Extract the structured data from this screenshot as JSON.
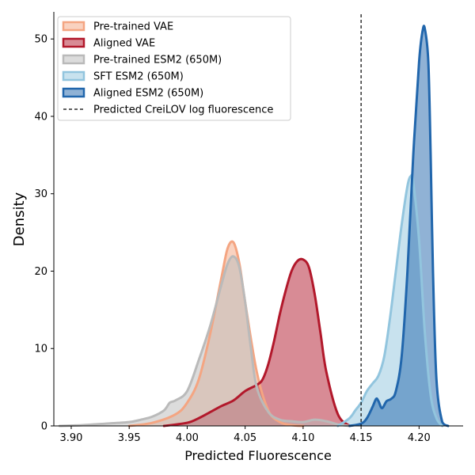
{
  "chart_data": {
    "type": "area",
    "xlabel": "Predicted Fluorescence",
    "ylabel": "Density",
    "xlim": [
      3.885,
      4.238
    ],
    "ylim": [
      0,
      53.5
    ],
    "xticks": [
      3.9,
      3.95,
      4.0,
      4.05,
      4.1,
      4.15,
      4.2
    ],
    "xtick_labels": [
      "3.90",
      "3.95",
      "4.00",
      "4.05",
      "4.10",
      "4.15",
      "4.20"
    ],
    "yticks": [
      0,
      10,
      20,
      30,
      40,
      50
    ],
    "ytick_labels": [
      "0",
      "10",
      "20",
      "30",
      "40",
      "50"
    ],
    "grid": false,
    "legend_position": "top-left",
    "reference_line": {
      "label": "Predicted CreiLOV log fluorescence",
      "x": 4.15,
      "style": "dashed",
      "color": "#000000"
    },
    "series": [
      {
        "name": "Pre-trained VAE",
        "color": "#f4a582",
        "x": [
          3.95,
          3.97,
          3.99,
          4.0,
          4.01,
          4.02,
          4.03,
          4.035,
          4.04,
          4.045,
          4.05,
          4.06,
          4.07,
          4.08,
          4.09,
          4.1
        ],
        "y": [
          0,
          0.4,
          1.5,
          3,
          6,
          12,
          19.5,
          23,
          23.7,
          21,
          16,
          7,
          2,
          0.5,
          0.1,
          0
        ]
      },
      {
        "name": "Aligned VAE",
        "color": "#b2182b",
        "x": [
          3.98,
          4.0,
          4.01,
          4.02,
          4.03,
          4.04,
          4.05,
          4.06,
          4.065,
          4.07,
          4.075,
          4.08,
          4.085,
          4.09,
          4.095,
          4.1,
          4.105,
          4.11,
          4.115,
          4.12,
          4.13,
          4.14
        ],
        "y": [
          0,
          0.4,
          1,
          1.8,
          2.6,
          3.3,
          4.5,
          5.3,
          6,
          8,
          11,
          14.5,
          17.5,
          20,
          21.3,
          21.5,
          20.5,
          17,
          12,
          7,
          1.5,
          0
        ]
      },
      {
        "name": "Pre-trained ESM2 (650M)",
        "color": "#bababa",
        "x": [
          3.89,
          3.91,
          3.93,
          3.95,
          3.96,
          3.97,
          3.98,
          3.985,
          3.99,
          4.0,
          4.01,
          4.02,
          4.03,
          4.035,
          4.04,
          4.045,
          4.05,
          4.055,
          4.06,
          4.07,
          4.08,
          4.09,
          4.1,
          4.11,
          4.12,
          4.13,
          4.14
        ],
        "y": [
          0,
          0.1,
          0.3,
          0.5,
          0.8,
          1.2,
          2,
          3,
          3.3,
          4.5,
          8.5,
          13,
          18.5,
          21,
          21.9,
          20.5,
          16,
          10,
          5,
          1.8,
          0.8,
          0.6,
          0.5,
          0.8,
          0.6,
          0.2,
          0
        ]
      },
      {
        "name": "SFT ESM2 (650M)",
        "color": "#92c5de",
        "x": [
          4.13,
          4.14,
          4.145,
          4.15,
          4.155,
          4.16,
          4.165,
          4.17,
          4.175,
          4.18,
          4.185,
          4.19,
          4.193,
          4.195,
          4.2,
          4.205,
          4.21,
          4.215,
          4.22
        ],
        "y": [
          0,
          1,
          2,
          3,
          4.5,
          5.5,
          6.5,
          9,
          14,
          20,
          26,
          31,
          32.3,
          31.5,
          24,
          12,
          4,
          1,
          0
        ]
      },
      {
        "name": "Aligned ESM2 (650M)",
        "color": "#2166ac",
        "x": [
          4.14,
          4.15,
          4.155,
          4.16,
          4.163,
          4.165,
          4.168,
          4.172,
          4.176,
          4.18,
          4.185,
          4.19,
          4.195,
          4.2,
          4.203,
          4.205,
          4.208,
          4.21,
          4.212,
          4.215,
          4.22,
          4.225
        ],
        "y": [
          0,
          0.3,
          1,
          2.5,
          3.5,
          3.2,
          2.3,
          3.2,
          3.5,
          4.5,
          9,
          20,
          35,
          47,
          51,
          51.3,
          47,
          35,
          20,
          6,
          0.5,
          0
        ]
      }
    ]
  }
}
